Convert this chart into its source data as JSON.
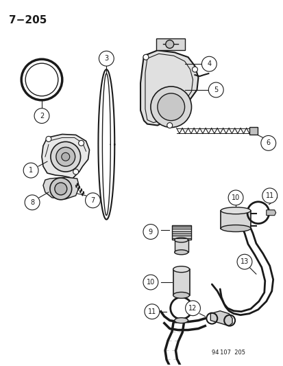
{
  "title": "7−205",
  "bg_color": "#ffffff",
  "line_color": "#1a1a1a",
  "footer_text": "94 107  205",
  "fig_width": 4.14,
  "fig_height": 5.33
}
